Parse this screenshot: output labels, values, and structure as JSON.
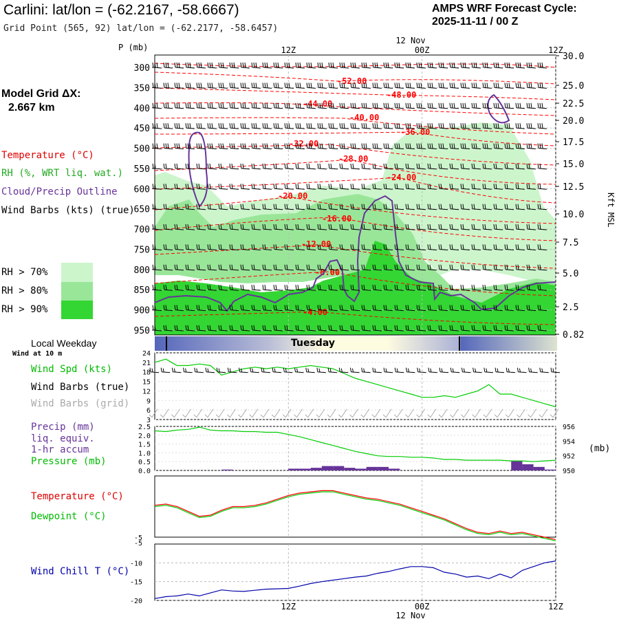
{
  "header": {
    "station_title": "Carlini:  lat/lon = (-62.2167, -58.6667)",
    "grid_point": "Grid Point (565, 92) lat/lon = (-62.2177, -58.6457)",
    "forecast_line1": "AMPS WRF Forecast Cycle:",
    "forecast_line2": "2025-11-11 / 00  Z",
    "model_grid_label": "Model Grid ΔX:",
    "model_grid_value": "2.667 km"
  },
  "legend": {
    "temperature": "Temperature (°C)",
    "rh": "RH (%, WRT liq. wat.)",
    "cloud": "Cloud/Precip Outline",
    "wind_barbs": "Wind Barbs (kts) (true)",
    "rh70": "RH > 70%",
    "rh80": "RH > 80%",
    "rh90": "RH > 90%",
    "rh70_color": "#ccf5cc",
    "rh80_color": "#99e699",
    "rh90_color": "#33d633"
  },
  "colors": {
    "temperature": "#ff0000",
    "rh": "#22aa22",
    "cloud": "#663399",
    "wind_spd": "#00cc00",
    "precip": "#663399",
    "wind_chill": "#0000aa",
    "grid_barbs": "#aaaaaa"
  },
  "time_axis": {
    "top_date": "12 Nov",
    "bottom_date": "12 Nov",
    "ticks": [
      "12Z",
      "00Z",
      "12Z"
    ]
  },
  "upper_panel": {
    "pressure_label": "P (mb)",
    "pressure_ticks": [
      "300",
      "350",
      "400",
      "450",
      "500",
      "550",
      "600",
      "650",
      "700",
      "750",
      "800",
      "850",
      "900",
      "950"
    ],
    "height_ticks": [
      "30.0",
      "25.0",
      "22.5",
      "20.0",
      "17.5",
      "15.0",
      "12.5",
      "10.0",
      "7.5",
      "5.0",
      "2.5",
      "0.82"
    ],
    "height_unit": "Kft MSL",
    "temperature_contours": [
      "-52.00",
      "-48.00",
      "-44.00",
      "-40.00",
      "-36.00",
      "-32.00",
      "-28.00",
      "-24.00",
      "-20.00",
      "-16.00",
      "-12.00",
      "-8.00",
      "-4.00"
    ]
  },
  "day_bar": {
    "label": "Tuesday",
    "title": "Local Weekday"
  },
  "panels": {
    "wind": {
      "subtitle": "Wind at 10 m",
      "spd_label": "Wind Spd (kts)",
      "barbs_true_label": "Wind Barbs (true)",
      "barbs_grid_label": "Wind Barbs (grid)",
      "y_ticks": [
        "24",
        "21",
        "18",
        "15",
        "12",
        "9",
        "6",
        "3"
      ]
    },
    "precip": {
      "label1": "Precip (mm)",
      "label2": "liq. equiv.",
      "label3": "1-hr accum",
      "pressure_label": "Pressure (mb)",
      "left_ticks": [
        "2.5",
        "2.0",
        "1.5",
        "1.0",
        "0.5",
        "0.0"
      ],
      "right_ticks": [
        "956",
        "954",
        "952",
        "950"
      ],
      "right_unit": "(mb)"
    },
    "temp": {
      "temp_label": "Temperature (°C)",
      "dew_label": "Dewpoint (°C)",
      "y_ticks": [
        "-5"
      ]
    },
    "chill": {
      "label": "Wind Chill T (°C)",
      "top_tick": "-5",
      "y_ticks": [
        "-10",
        "-15",
        "-20"
      ]
    }
  },
  "chart_data": [
    {
      "type": "line",
      "title": "Wind Spd (kts)",
      "x_hours": [
        0,
        1,
        2,
        3,
        4,
        5,
        6,
        7,
        8,
        9,
        10,
        11,
        12,
        13,
        14,
        15,
        16,
        17,
        18,
        19,
        20,
        21,
        22,
        23,
        24,
        25,
        26,
        27,
        28,
        29,
        30,
        31,
        32,
        33,
        34,
        35,
        36
      ],
      "ylim": [
        3,
        24
      ],
      "series": [
        {
          "name": "Wind Spd (kts)",
          "values": [
            21,
            22,
            20,
            20,
            20.5,
            20,
            17,
            18,
            19,
            19.5,
            19,
            19.5,
            19,
            19.5,
            20,
            19.5,
            19,
            17.5,
            16,
            15,
            14,
            13,
            12,
            11,
            10,
            10,
            10.5,
            10,
            11,
            12,
            14,
            11,
            11,
            10,
            9,
            8,
            7
          ]
        }
      ]
    },
    {
      "type": "bar",
      "title": "Precip (mm)",
      "x_hours": [
        0,
        1,
        2,
        3,
        4,
        5,
        6,
        7,
        8,
        9,
        10,
        11,
        12,
        13,
        14,
        15,
        16,
        17,
        18,
        19,
        20,
        21,
        22,
        23,
        24,
        25,
        26,
        27,
        28,
        29,
        30,
        31,
        32,
        33,
        34,
        35,
        36
      ],
      "ylim": [
        0,
        2.5
      ],
      "values": [
        0,
        0,
        0,
        0,
        0,
        0,
        0.05,
        0,
        0,
        0,
        0,
        0,
        0.1,
        0.1,
        0.15,
        0.25,
        0.25,
        0.15,
        0.1,
        0.2,
        0.2,
        0.1,
        0,
        0,
        0,
        0,
        0,
        0,
        0,
        0,
        0,
        0,
        0.55,
        0.35,
        0.2,
        0.05,
        0
      ]
    },
    {
      "type": "line",
      "title": "Pressure (mb)",
      "x_hours": [
        0,
        1,
        2,
        3,
        4,
        5,
        6,
        7,
        8,
        9,
        10,
        11,
        12,
        13,
        14,
        15,
        16,
        17,
        18,
        19,
        20,
        21,
        22,
        23,
        24,
        25,
        26,
        27,
        28,
        29,
        30,
        31,
        32,
        33,
        34,
        35,
        36
      ],
      "ylim": [
        950,
        956
      ],
      "series": [
        {
          "name": "Pressure (mb)",
          "values": [
            955.4,
            955.3,
            955.5,
            955.6,
            955.9,
            955.5,
            955.4,
            955.4,
            955.3,
            955.3,
            955.2,
            955.2,
            954.9,
            954.6,
            954.2,
            953.8,
            953.4,
            953.0,
            952.6,
            952.3,
            952.0,
            951.9,
            951.9,
            951.8,
            951.8,
            951.7,
            951.5,
            951.5,
            951.4,
            951.4,
            951.4,
            951.4,
            951.3,
            951.3,
            951.2,
            951.3,
            951.4
          ]
        }
      ]
    },
    {
      "type": "line",
      "title": "Temperature / Dewpoint (°C)",
      "x_hours": [
        0,
        1,
        2,
        3,
        4,
        5,
        6,
        7,
        8,
        9,
        10,
        11,
        12,
        13,
        14,
        15,
        16,
        17,
        18,
        19,
        20,
        21,
        22,
        23,
        24,
        25,
        26,
        27,
        28,
        29,
        30,
        31,
        32,
        33,
        34,
        35,
        36
      ],
      "ylim": [
        -5,
        0
      ],
      "series": [
        {
          "name": "Temperature (°C)",
          "values": [
            -2.4,
            -2.3,
            -2.5,
            -2.9,
            -3.3,
            -3.2,
            -2.8,
            -2.5,
            -2.5,
            -2.4,
            -2.2,
            -1.9,
            -1.6,
            -1.4,
            -1.3,
            -1.2,
            -1.2,
            -1.4,
            -1.6,
            -1.8,
            -1.9,
            -2.1,
            -2.3,
            -2.6,
            -2.9,
            -3.2,
            -3.5,
            -3.9,
            -4.3,
            -4.6,
            -4.7,
            -4.5,
            -4.7,
            -4.6,
            -4.8,
            -5.0,
            -5.2
          ]
        },
        {
          "name": "Dewpoint (°C)",
          "values": [
            -2.5,
            -2.4,
            -2.6,
            -3.0,
            -3.4,
            -3.3,
            -2.9,
            -2.6,
            -2.6,
            -2.5,
            -2.3,
            -2.0,
            -1.7,
            -1.5,
            -1.4,
            -1.3,
            -1.3,
            -1.5,
            -1.7,
            -1.9,
            -2.0,
            -2.2,
            -2.4,
            -2.7,
            -3.0,
            -3.3,
            -3.6,
            -4.0,
            -4.4,
            -4.7,
            -4.8,
            -4.6,
            -4.8,
            -4.7,
            -4.9,
            -5.1,
            -5.3
          ]
        }
      ]
    },
    {
      "type": "line",
      "title": "Wind Chill T (°C)",
      "x_hours": [
        0,
        1,
        2,
        3,
        4,
        5,
        6,
        7,
        8,
        9,
        10,
        11,
        12,
        13,
        14,
        15,
        16,
        17,
        18,
        19,
        20,
        21,
        22,
        23,
        24,
        25,
        26,
        27,
        28,
        29,
        30,
        31,
        32,
        33,
        34,
        35,
        36
      ],
      "ylim": [
        -20,
        -5
      ],
      "series": [
        {
          "name": "Wind Chill T (°C)",
          "values": [
            -19.5,
            -19.0,
            -18.8,
            -18.3,
            -18.8,
            -18.0,
            -17.2,
            -17.5,
            -17.6,
            -17.3,
            -17.0,
            -16.9,
            -16.8,
            -16.2,
            -15.5,
            -15.0,
            -14.6,
            -14.2,
            -13.8,
            -13.5,
            -12.8,
            -12.3,
            -11.6,
            -11.0,
            -11.0,
            -11.3,
            -12.5,
            -13.0,
            -13.8,
            -13.5,
            -14.2,
            -13.0,
            -14.0,
            -12.0,
            -11.0,
            -10.0,
            -9.5
          ]
        }
      ]
    }
  ]
}
